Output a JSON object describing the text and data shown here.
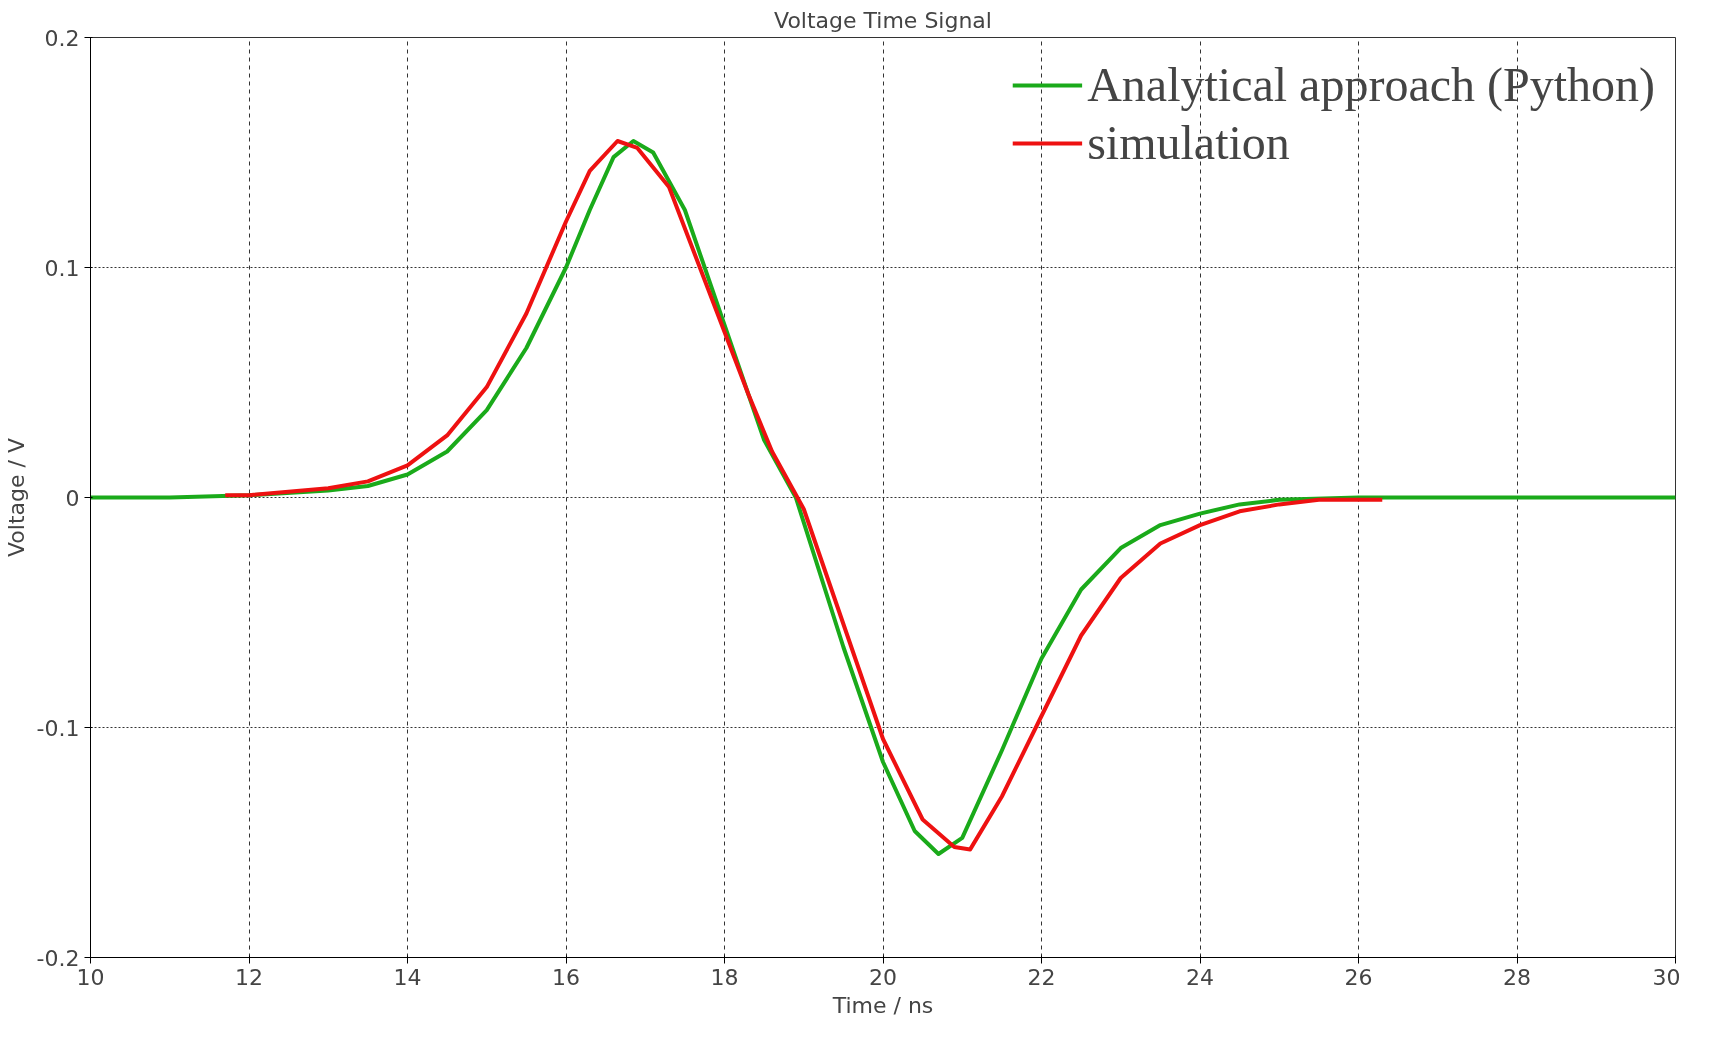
{
  "chart_data": {
    "type": "line",
    "title": "Voltage Time Signal",
    "xlabel": "Time / ns",
    "ylabel": "Voltage / V",
    "xlim": [
      10,
      30
    ],
    "xticks": [
      10,
      12,
      14,
      16,
      18,
      20,
      22,
      24,
      26,
      28,
      30
    ],
    "ylim": [
      -0.2,
      0.2
    ],
    "yticks": [
      -0.2,
      -0.1,
      0,
      0.1,
      0.2
    ],
    "grid": true,
    "legend": "top right",
    "marker": "none",
    "line_style": "solid",
    "series": [
      {
        "name": "Analytical approach (Python)",
        "color": "#1aaa1a",
        "x": [
          10,
          11,
          12,
          13,
          13.5,
          14,
          14.5,
          15,
          15.5,
          16,
          16.3,
          16.6,
          16.85,
          17.1,
          17.5,
          18,
          18.5,
          18.9,
          19.5,
          20,
          20.4,
          20.7,
          21,
          21.5,
          22,
          22.5,
          23,
          23.5,
          24,
          24.5,
          25,
          26,
          30
        ],
        "values": [
          0,
          0,
          0.001,
          0.003,
          0.005,
          0.01,
          0.02,
          0.038,
          0.065,
          0.1,
          0.125,
          0.148,
          0.155,
          0.15,
          0.125,
          0.075,
          0.025,
          0,
          -0.065,
          -0.115,
          -0.145,
          -0.155,
          -0.148,
          -0.11,
          -0.07,
          -0.04,
          -0.022,
          -0.012,
          -0.007,
          -0.003,
          -0.001,
          0,
          0
        ]
      },
      {
        "name": "simulation",
        "color": "#ee1111",
        "x": [
          11.7,
          12,
          13,
          13.5,
          14,
          14.5,
          15,
          15.5,
          16,
          16.3,
          16.65,
          16.9,
          17.3,
          17.8,
          18.3,
          18.6,
          19,
          19.5,
          20,
          20.5,
          20.9,
          21.1,
          21.5,
          22,
          22.5,
          23,
          23.5,
          24,
          24.5,
          25,
          25.5,
          26.3
        ],
        "values": [
          0.001,
          0.001,
          0.004,
          0.007,
          0.014,
          0.027,
          0.048,
          0.08,
          0.12,
          0.142,
          0.155,
          0.152,
          0.135,
          0.09,
          0.045,
          0.02,
          -0.005,
          -0.055,
          -0.105,
          -0.14,
          -0.152,
          -0.153,
          -0.13,
          -0.095,
          -0.06,
          -0.035,
          -0.02,
          -0.012,
          -0.006,
          -0.003,
          -0.001,
          -0.001
        ]
      }
    ]
  }
}
